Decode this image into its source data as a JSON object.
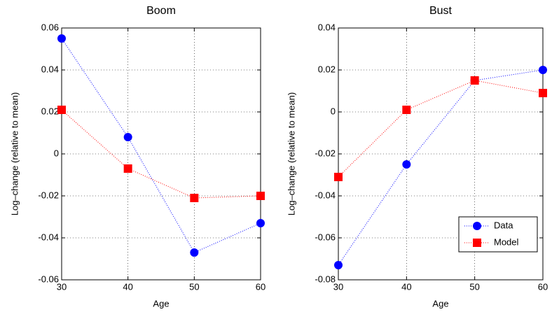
{
  "chart_data": [
    {
      "type": "line",
      "title": "Boom",
      "xlabel": "Age",
      "ylabel": "Log–change (relative to mean)",
      "x": [
        30,
        40,
        50,
        60
      ],
      "xlim": [
        30,
        60
      ],
      "xticks": [
        30,
        40,
        50,
        60
      ],
      "ylim": [
        -0.06,
        0.06
      ],
      "yticks": [
        -0.06,
        -0.04,
        -0.02,
        0,
        0.02,
        0.04,
        0.06
      ],
      "grid": true,
      "series": [
        {
          "name": "Data",
          "color": "#0000ff",
          "marker": "circle",
          "values": [
            0.055,
            0.008,
            -0.047,
            -0.033
          ]
        },
        {
          "name": "Model",
          "color": "#ff0000",
          "marker": "square",
          "values": [
            0.021,
            -0.007,
            -0.021,
            -0.02
          ]
        }
      ]
    },
    {
      "type": "line",
      "title": "Bust",
      "xlabel": "Age",
      "ylabel": "Log–change (relative to mean)",
      "x": [
        30,
        40,
        50,
        60
      ],
      "xlim": [
        30,
        60
      ],
      "xticks": [
        30,
        40,
        50,
        60
      ],
      "ylim": [
        -0.08,
        0.04
      ],
      "yticks": [
        -0.08,
        -0.06,
        -0.04,
        -0.02,
        0,
        0.02,
        0.04
      ],
      "grid": true,
      "legend": "lower right",
      "series": [
        {
          "name": "Data",
          "color": "#0000ff",
          "marker": "circle",
          "values": [
            -0.073,
            -0.025,
            0.015,
            0.02
          ]
        },
        {
          "name": "Model",
          "color": "#ff0000",
          "marker": "square",
          "values": [
            -0.031,
            0.001,
            0.015,
            0.009
          ]
        }
      ]
    }
  ]
}
